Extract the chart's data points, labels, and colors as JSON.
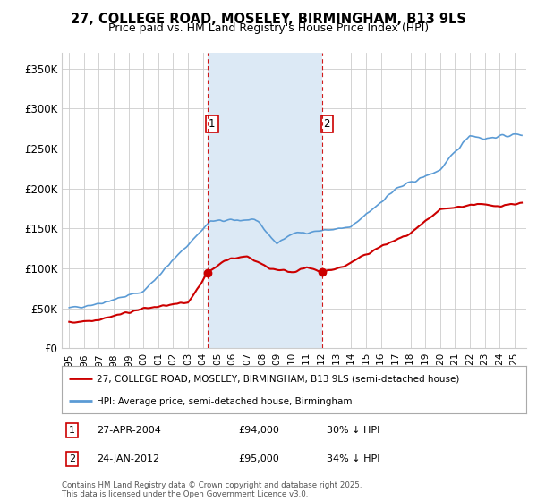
{
  "title_line1": "27, COLLEGE ROAD, MOSELEY, BIRMINGHAM, B13 9LS",
  "title_line2": "Price paid vs. HM Land Registry's House Price Index (HPI)",
  "background_color": "#ffffff",
  "grid_color": "#cccccc",
  "sale1_date_x": 2004.32,
  "sale2_date_x": 2012.07,
  "sale1_price": 94000,
  "sale2_price": 95000,
  "legend_line1": "27, COLLEGE ROAD, MOSELEY, BIRMINGHAM, B13 9LS (semi-detached house)",
  "legend_line2": "HPI: Average price, semi-detached house, Birmingham",
  "note1_label": "1",
  "note1_date": "27-APR-2004",
  "note1_price": "£94,000",
  "note1_hpi": "30% ↓ HPI",
  "note2_label": "2",
  "note2_date": "24-JAN-2012",
  "note2_price": "£95,000",
  "note2_hpi": "34% ↓ HPI",
  "footer": "Contains HM Land Registry data © Crown copyright and database right 2025.\nThis data is licensed under the Open Government Licence v3.0.",
  "hpi_color": "#5b9bd5",
  "hpi_fill_color": "#dce9f5",
  "price_color": "#cc0000",
  "dashed_color": "#cc0000",
  "ylim_max": 370000,
  "yticks": [
    0,
    50000,
    100000,
    150000,
    200000,
    250000,
    300000,
    350000
  ],
  "ytick_labels": [
    "£0",
    "£50K",
    "£100K",
    "£150K",
    "£200K",
    "£250K",
    "£300K",
    "£350K"
  ],
  "xmin": 1994.5,
  "xmax": 2025.8
}
